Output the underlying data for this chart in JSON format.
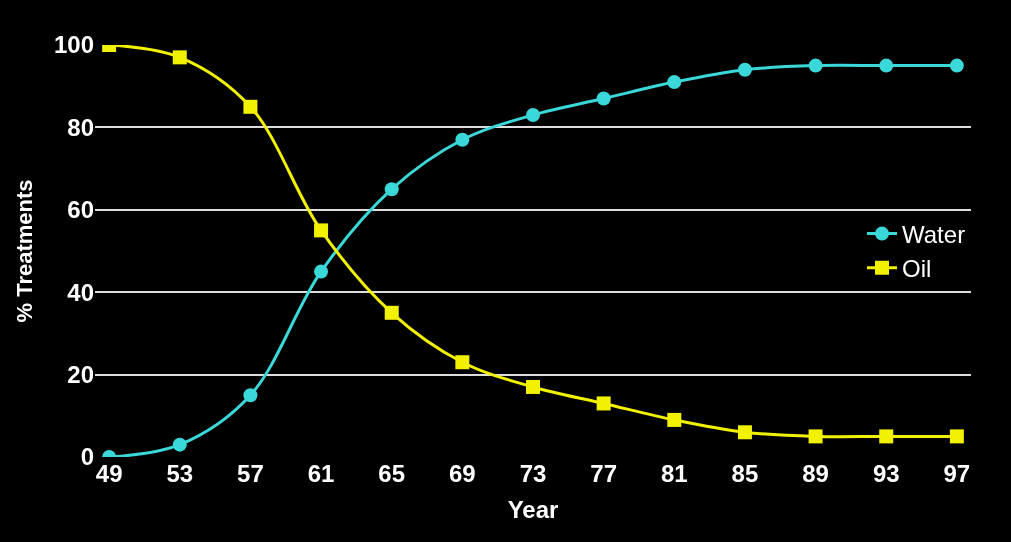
{
  "chart_data": {
    "type": "line",
    "xlabel": "Year",
    "ylabel": "% Treatments",
    "categories": [
      "49",
      "53",
      "57",
      "61",
      "65",
      "69",
      "73",
      "77",
      "81",
      "85",
      "89",
      "93",
      "97"
    ],
    "series": [
      {
        "name": "Water",
        "color": "#3ad8d8",
        "marker": "circle",
        "values": [
          0,
          3,
          15,
          45,
          65,
          77,
          83,
          87,
          91,
          94,
          95,
          95,
          95
        ]
      },
      {
        "name": "Oil",
        "color": "#f2f200",
        "marker": "square",
        "values": [
          100,
          97,
          85,
          55,
          35,
          23,
          17,
          13,
          9,
          6,
          5,
          5,
          5
        ]
      }
    ],
    "ylim": [
      0,
      100
    ],
    "yticks": [
      0,
      20,
      40,
      60,
      80,
      100
    ],
    "grid": "y",
    "legend": "right",
    "line_style": "solid"
  }
}
